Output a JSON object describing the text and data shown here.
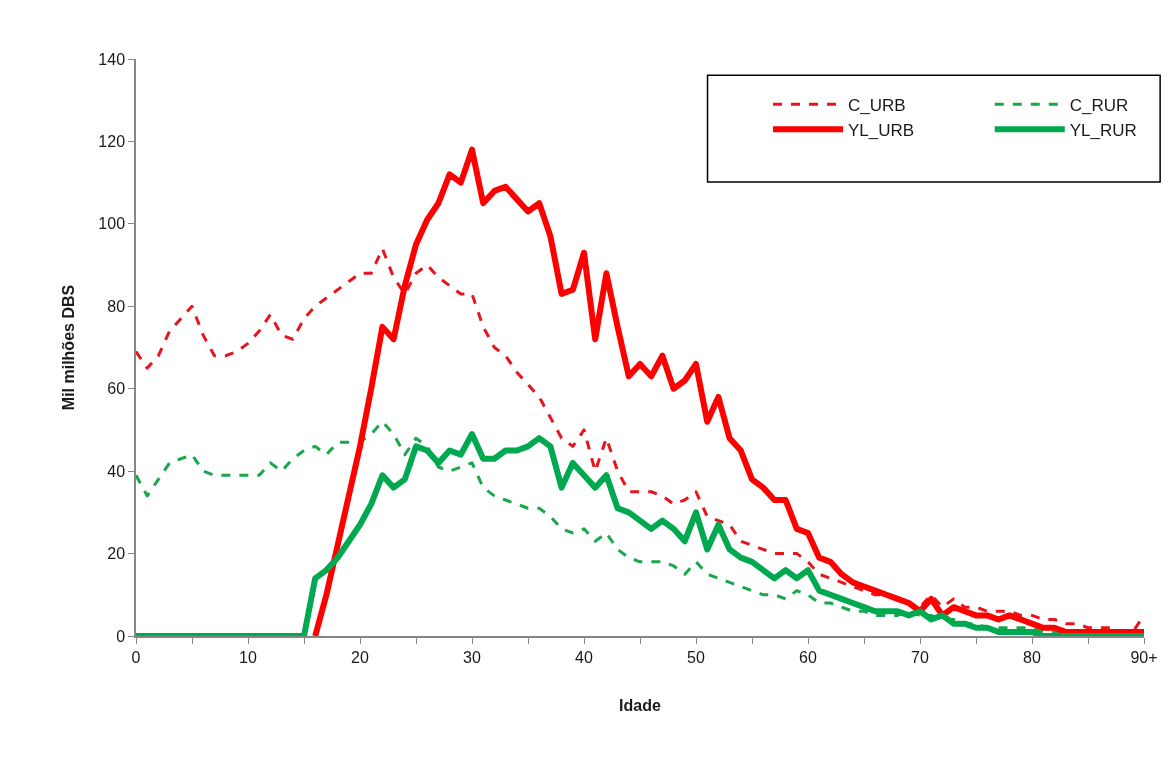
{
  "chart_data": {
    "type": "line",
    "xlabel": "Idade",
    "ylabel": "Mil milhões DBS",
    "x": [
      0,
      1,
      2,
      3,
      4,
      5,
      6,
      7,
      8,
      9,
      10,
      11,
      12,
      13,
      14,
      15,
      16,
      17,
      18,
      19,
      20,
      21,
      22,
      23,
      24,
      25,
      26,
      27,
      28,
      29,
      30,
      31,
      32,
      33,
      34,
      35,
      36,
      37,
      38,
      39,
      40,
      41,
      42,
      43,
      44,
      45,
      46,
      47,
      48,
      49,
      50,
      51,
      52,
      53,
      54,
      55,
      56,
      57,
      58,
      59,
      60,
      61,
      62,
      63,
      64,
      65,
      66,
      67,
      68,
      69,
      70,
      71,
      72,
      73,
      74,
      75,
      76,
      77,
      78,
      79,
      80,
      81,
      82,
      83,
      84,
      85,
      86,
      87,
      88,
      89,
      90
    ],
    "xlim": [
      0,
      90
    ],
    "xticks": [
      0,
      {
        "value": 5,
        "label": null
      },
      10,
      {
        "value": 15,
        "label": null
      },
      20,
      {
        "value": 25,
        "label": null
      },
      30,
      {
        "value": 35,
        "label": null
      },
      40,
      {
        "value": 45,
        "label": null
      },
      50,
      {
        "value": 55,
        "label": null
      },
      60,
      {
        "value": 65,
        "label": null
      },
      70,
      {
        "value": 75,
        "label": null
      },
      80,
      {
        "value": 85,
        "label": null
      },
      {
        "value": 90,
        "label": "90+"
      }
    ],
    "ylim": [
      0,
      140
    ],
    "yticks": [
      0,
      20,
      40,
      60,
      80,
      100,
      120,
      140
    ],
    "legend": "top right",
    "marker": "none",
    "series": [
      {
        "name": "C_URB",
        "color": "#e8141c",
        "line_style": "dashed",
        "values": [
          69,
          65,
          68,
          74,
          77,
          80,
          73,
          68,
          68,
          69,
          71,
          74,
          78,
          73,
          72,
          77,
          80,
          82,
          84,
          86,
          88,
          88,
          94,
          87,
          83,
          88,
          90,
          87,
          85,
          83,
          83,
          75,
          70,
          68,
          64,
          61,
          58,
          53,
          48,
          46,
          50,
          40,
          48,
          40,
          35,
          35,
          35,
          34,
          32,
          33,
          35,
          29,
          28,
          27,
          23,
          22,
          21,
          20,
          20,
          20,
          18,
          15,
          14,
          13,
          12,
          11,
          10,
          10,
          9,
          8,
          7,
          10,
          7,
          9,
          7,
          7,
          6,
          6,
          6,
          5,
          5,
          4,
          4,
          3,
          3,
          2,
          2,
          2,
          1,
          1,
          5
        ]
      },
      {
        "name": "C_RUR",
        "color": "#1aa64a",
        "line_style": "dashed",
        "values": [
          39,
          34,
          38,
          42,
          43,
          44,
          40,
          39,
          39,
          39,
          39,
          39,
          42,
          40,
          43,
          45,
          46,
          44,
          47,
          47,
          47,
          49,
          52,
          49,
          44,
          48,
          46,
          41,
          40,
          41,
          42,
          36,
          34,
          33,
          32,
          31,
          31,
          29,
          26,
          25,
          26,
          23,
          25,
          21,
          19,
          18,
          18,
          18,
          17,
          15,
          18,
          15,
          14,
          13,
          12,
          11,
          10,
          10,
          9,
          11,
          10,
          8,
          8,
          7,
          6,
          6,
          5,
          5,
          5,
          6,
          5,
          5,
          4,
          4,
          3,
          3,
          2,
          2,
          2,
          2,
          2,
          1,
          1,
          1,
          1,
          1,
          1,
          1,
          1,
          1,
          1
        ]
      },
      {
        "name": "YL_URB",
        "color": "#ff0000",
        "line_style": "solid",
        "values": [
          null,
          null,
          null,
          null,
          null,
          null,
          null,
          null,
          null,
          null,
          null,
          null,
          null,
          null,
          null,
          null,
          0,
          10,
          22,
          34,
          46,
          60,
          75,
          72,
          85,
          95,
          101,
          105,
          112,
          110,
          118,
          105,
          108,
          109,
          106,
          103,
          105,
          97,
          83,
          84,
          93,
          72,
          88,
          75,
          63,
          66,
          63,
          68,
          60,
          62,
          66,
          52,
          58,
          48,
          45,
          38,
          36,
          33,
          33,
          26,
          25,
          19,
          18,
          15,
          13,
          12,
          11,
          10,
          9,
          8,
          6,
          9,
          5,
          7,
          6,
          5,
          5,
          4,
          5,
          4,
          3,
          2,
          2,
          1,
          1,
          1,
          1,
          1,
          1,
          1,
          1
        ]
      },
      {
        "name": "YL_RUR",
        "color": "#00a84f",
        "line_style": "solid",
        "values": [
          0,
          0,
          0,
          0,
          0,
          0,
          0,
          0,
          0,
          0,
          0,
          0,
          0,
          0,
          0,
          0,
          14,
          16,
          19,
          23,
          27,
          32,
          39,
          36,
          38,
          46,
          45,
          42,
          45,
          44,
          49,
          43,
          43,
          45,
          45,
          46,
          48,
          46,
          36,
          42,
          39,
          36,
          39,
          31,
          30,
          28,
          26,
          28,
          26,
          23,
          30,
          21,
          27,
          21,
          19,
          18,
          16,
          14,
          16,
          14,
          16,
          11,
          10,
          9,
          8,
          7,
          6,
          6,
          6,
          5,
          6,
          4,
          5,
          3,
          3,
          2,
          2,
          1,
          1,
          1,
          1,
          0,
          0,
          0,
          0,
          0,
          0,
          0,
          0,
          0,
          0
        ]
      }
    ]
  }
}
